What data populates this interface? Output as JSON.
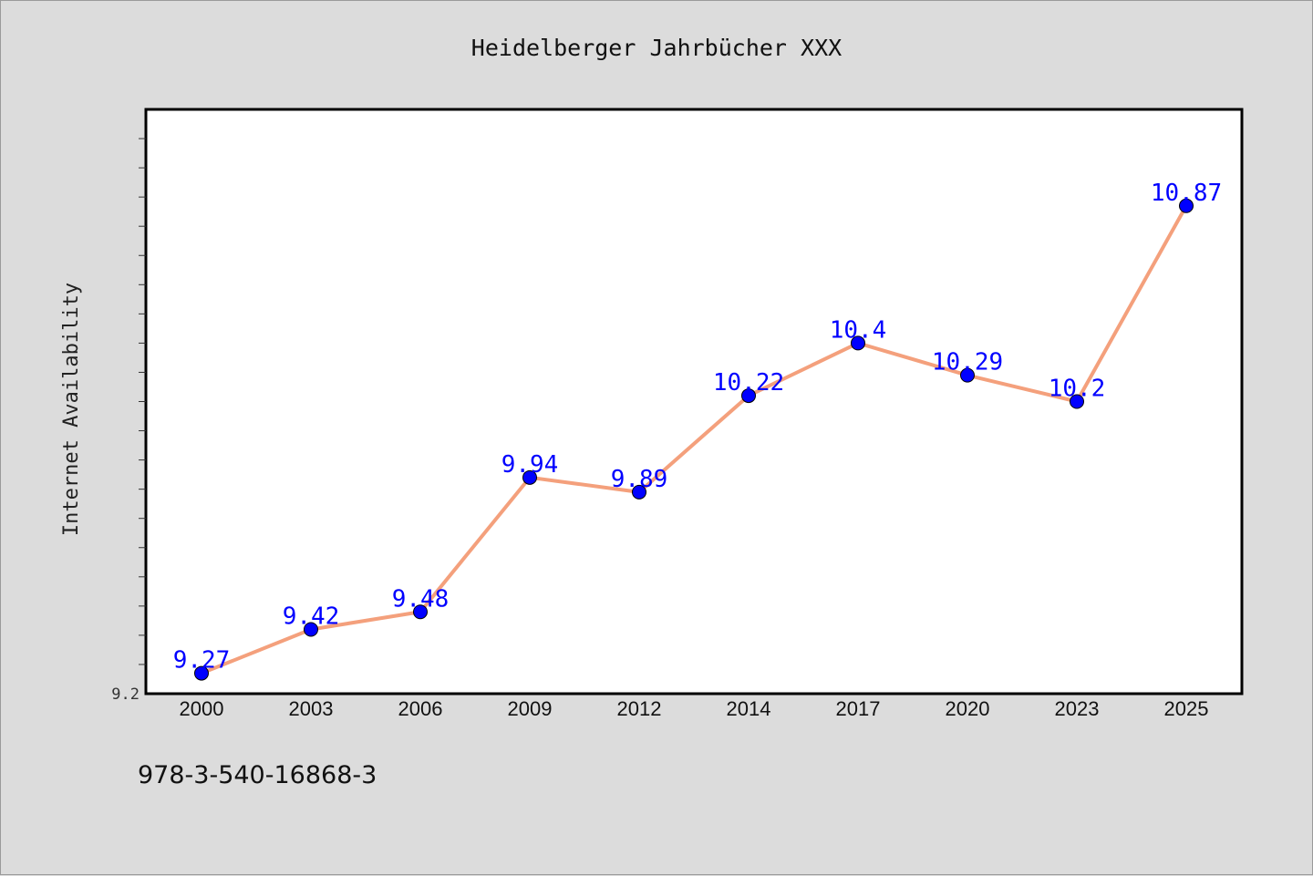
{
  "chart_data": {
    "type": "line",
    "title": "Heidelberger Jahrbücher XXX",
    "xlabel": "",
    "ylabel": "Internet Availability",
    "categories": [
      "2000",
      "2003",
      "2006",
      "2009",
      "2012",
      "2014",
      "2017",
      "2020",
      "2023",
      "2025"
    ],
    "series": [
      {
        "values": [
          9.27,
          9.42,
          9.48,
          9.94,
          9.89,
          10.22,
          10.4,
          10.29,
          10.2,
          10.87
        ],
        "line_color": "#f4a07c",
        "marker_color": "#0000ff",
        "label_color": "#0000ff"
      }
    ],
    "ylim": [
      9.2,
      11.2
    ],
    "y_tick_labels": [
      "9.2"
    ],
    "grid": false,
    "data_labels": true
  },
  "footer": {
    "isbn": "978-3-540-16868-3"
  }
}
